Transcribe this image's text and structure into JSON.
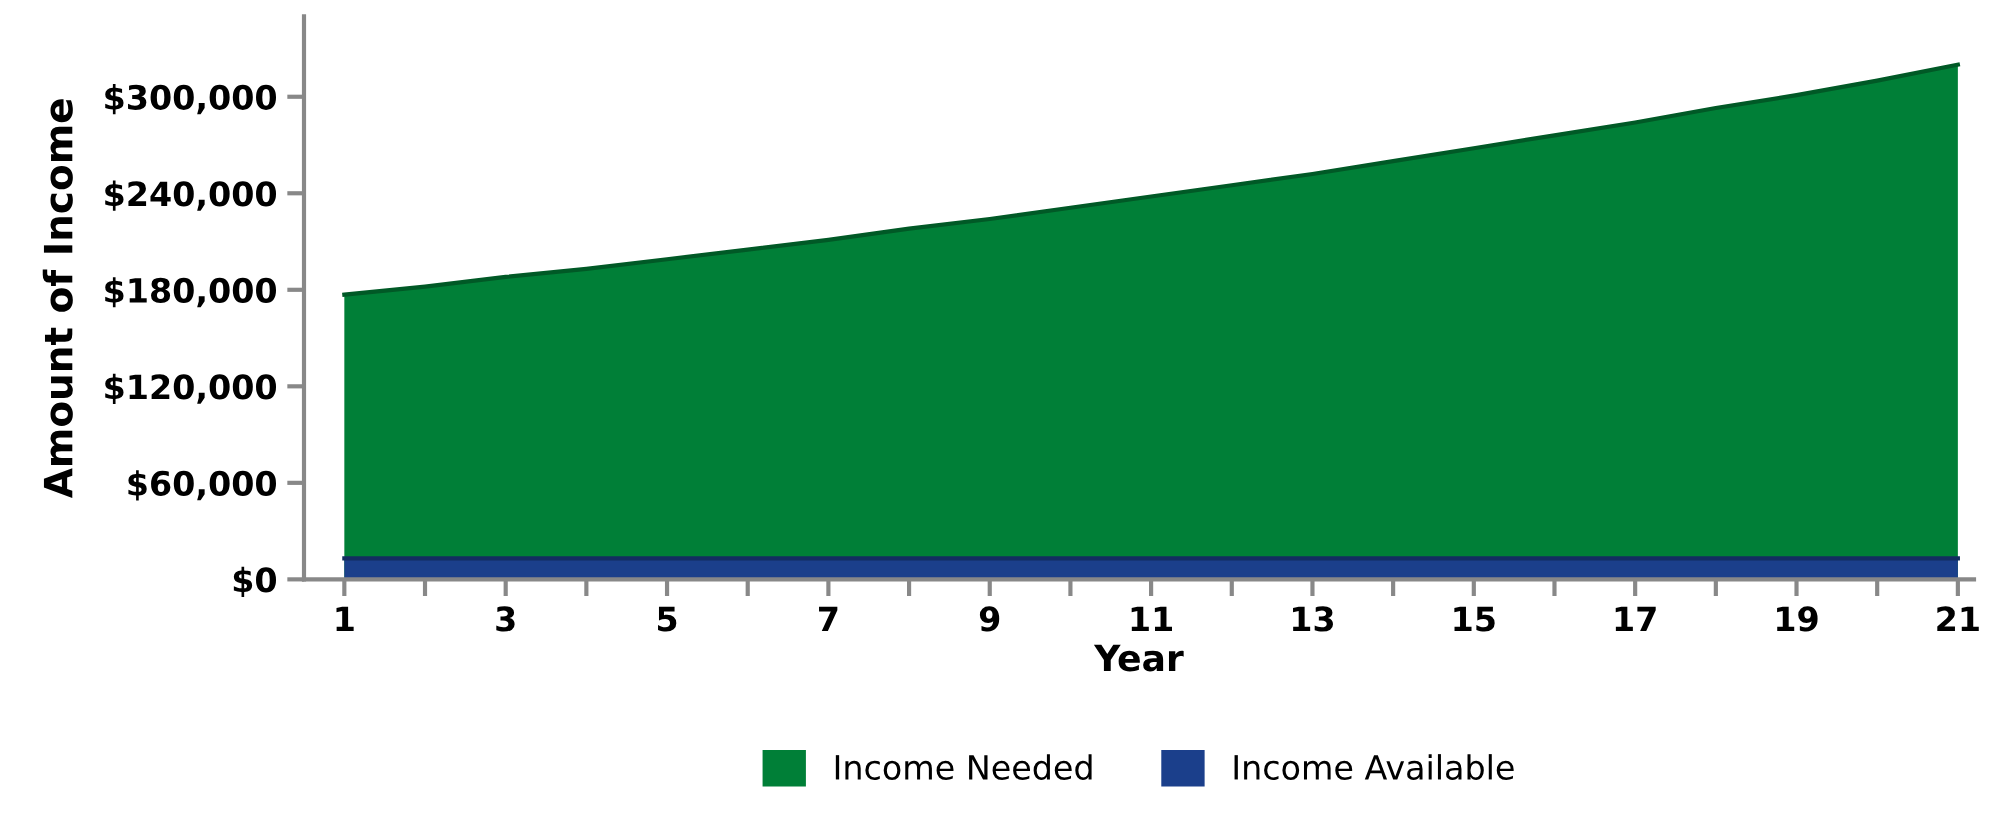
{
  "chart_data": {
    "type": "area",
    "xlabel": "Year",
    "ylabel": "Amount of Income",
    "x": [
      1,
      2,
      3,
      4,
      5,
      6,
      7,
      8,
      9,
      10,
      11,
      12,
      13,
      14,
      15,
      16,
      17,
      18,
      19,
      20,
      21
    ],
    "series": [
      {
        "name": "Income Needed",
        "color": "#007f37",
        "values": [
          177000,
          182000,
          188000,
          193000,
          199000,
          205000,
          211000,
          218000,
          224000,
          231000,
          238000,
          245000,
          252000,
          260000,
          268000,
          276000,
          284000,
          293000,
          301000,
          310000,
          320000
        ]
      },
      {
        "name": "Income Available",
        "color": "#1b3f8b",
        "values": [
          13000,
          13000,
          13000,
          13000,
          13000,
          13000,
          13000,
          13000,
          13000,
          13000,
          13000,
          13000,
          13000,
          13000,
          13000,
          13000,
          13000,
          13000,
          13000,
          13000,
          13000
        ]
      }
    ],
    "xlim": [
      0.5,
      21.2
    ],
    "xticks": [
      1,
      {
        "value": 2,
        "label": null
      },
      3,
      {
        "value": 4,
        "label": null
      },
      5,
      {
        "value": 6,
        "label": null
      },
      7,
      {
        "value": 8,
        "label": null
      },
      9,
      {
        "value": 10,
        "label": null
      },
      11,
      {
        "value": 12,
        "label": null
      },
      13,
      {
        "value": 14,
        "label": null
      },
      15,
      {
        "value": 16,
        "label": null
      },
      17,
      {
        "value": 18,
        "label": null
      },
      19,
      {
        "value": 20,
        "label": null
      },
      21
    ],
    "ylim": [
      0,
      350000
    ],
    "yticks": [
      {
        "value": 0,
        "label": "$0"
      },
      {
        "value": 60000,
        "label": "$60,000"
      },
      {
        "value": 120000,
        "label": "$120,000"
      },
      {
        "value": 180000,
        "label": "$180,000"
      },
      {
        "value": 240000,
        "label": "$240,000"
      },
      {
        "value": 300000,
        "label": "$300,000"
      }
    ],
    "grid": false,
    "legend": "bottom"
  }
}
